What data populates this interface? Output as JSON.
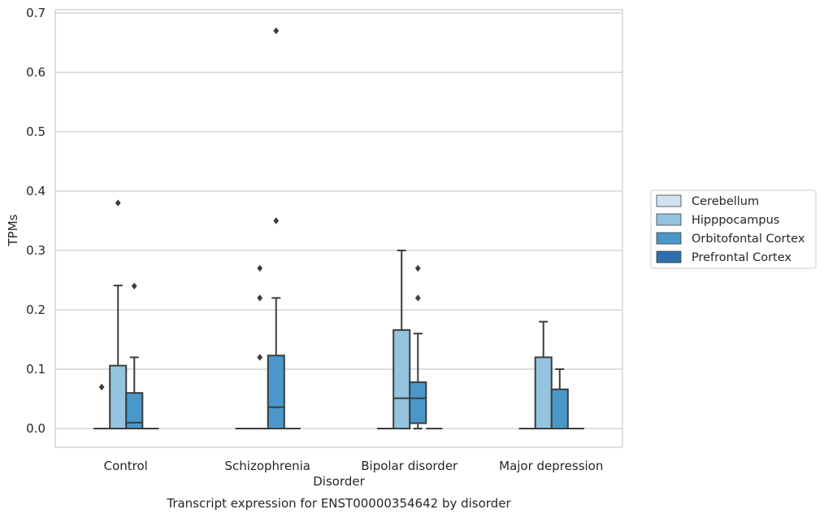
{
  "chart_data": {
    "type": "boxplot",
    "caption": "Transcript expression for ENST00000354642 by disorder",
    "xlabel": "Disorder",
    "ylabel": "TPMs",
    "ylim": [
      -0.032,
      0.705
    ],
    "yticks": [
      0.0,
      0.1,
      0.2,
      0.3,
      0.4,
      0.5,
      0.6,
      0.7
    ],
    "ytick_labels": [
      "0.0",
      "0.1",
      "0.2",
      "0.3",
      "0.4",
      "0.5",
      "0.6",
      "0.7"
    ],
    "grid": "horizontal",
    "legend_position": "right",
    "categories": [
      "Control",
      "Schizophrenia",
      "Bipolar disorder",
      "Major depression"
    ],
    "series": [
      {
        "name": "Cerebellum",
        "color": "#d0e1f2",
        "boxes": [
          {
            "q1": 0,
            "median": 0,
            "q3": 0,
            "whisker_low": 0,
            "whisker_high": 0,
            "outliers": [
              0.07
            ]
          },
          {
            "q1": 0,
            "median": 0,
            "q3": 0,
            "whisker_low": 0,
            "whisker_high": 0,
            "outliers": []
          },
          {
            "q1": 0,
            "median": 0,
            "q3": 0,
            "whisker_low": 0,
            "whisker_high": 0,
            "outliers": []
          },
          {
            "q1": 0,
            "median": 0,
            "q3": 0,
            "whisker_low": 0,
            "whisker_high": 0,
            "outliers": []
          }
        ]
      },
      {
        "name": "Hipppocampus",
        "color": "#94c4df",
        "boxes": [
          {
            "q1": 0,
            "median": 0,
            "q3": 0.106,
            "whisker_low": 0,
            "whisker_high": 0.241,
            "outliers": [
              0.38
            ]
          },
          {
            "q1": 0,
            "median": 0,
            "q3": 0,
            "whisker_low": 0,
            "whisker_high": 0,
            "outliers": [
              0.12,
              0.22,
              0.27
            ]
          },
          {
            "q1": 0,
            "median": 0.051,
            "q3": 0.166,
            "whisker_low": 0,
            "whisker_high": 0.3,
            "outliers": []
          },
          {
            "q1": 0,
            "median": 0,
            "q3": 0.12,
            "whisker_low": 0,
            "whisker_high": 0.18,
            "outliers": []
          }
        ]
      },
      {
        "name": "Orbitofontal Cortex",
        "color": "#4a98c9",
        "boxes": [
          {
            "q1": 0,
            "median": 0.01,
            "q3": 0.06,
            "whisker_low": 0,
            "whisker_high": 0.12,
            "outliers": [
              0.24
            ]
          },
          {
            "q1": 0,
            "median": 0.036,
            "q3": 0.123,
            "whisker_low": 0,
            "whisker_high": 0.22,
            "outliers": [
              0.35,
              0.67
            ]
          },
          {
            "q1": 0.009,
            "median": 0.051,
            "q3": 0.078,
            "whisker_low": 0,
            "whisker_high": 0.16,
            "outliers": [
              0.22,
              0.27
            ]
          },
          {
            "q1": 0,
            "median": 0,
            "q3": 0.066,
            "whisker_low": 0,
            "whisker_high": 0.1,
            "outliers": []
          }
        ]
      },
      {
        "name": "Prefrontal Cortex",
        "color": "#2e6fad",
        "boxes": [
          {
            "q1": 0,
            "median": 0,
            "q3": 0,
            "whisker_low": 0,
            "whisker_high": 0,
            "outliers": []
          },
          {
            "q1": 0,
            "median": 0,
            "q3": 0,
            "whisker_low": 0,
            "whisker_high": 0,
            "outliers": []
          },
          {
            "q1": 0,
            "median": 0,
            "q3": 0,
            "whisker_low": 0,
            "whisker_high": 0,
            "outliers": []
          },
          {
            "q1": 0,
            "median": 0,
            "q3": 0,
            "whisker_low": 0,
            "whisker_high": 0,
            "outliers": []
          }
        ]
      }
    ]
  }
}
